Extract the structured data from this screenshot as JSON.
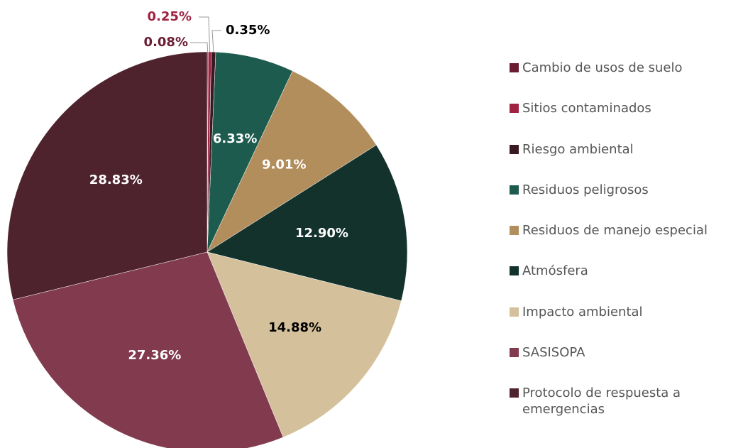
{
  "chart_data": {
    "type": "pie",
    "categories": [
      "Cambio de usos de suelo",
      "Sitios contaminados",
      "Riesgo ambiental",
      "Residuos peligrosos",
      "Residuos de manejo especial",
      "Atmósfera",
      "Impacto ambiental",
      "SASISOPA",
      "Protocolo de respuesta a emergencias"
    ],
    "values": [
      0.08,
      0.25,
      0.35,
      6.33,
      9.01,
      12.9,
      14.88,
      27.36,
      28.83
    ],
    "value_labels": [
      "0.08%",
      "0.25%",
      "0.35%",
      "6.33%",
      "9.01%",
      "12.90%",
      "14.88%",
      "27.36%",
      "28.83%"
    ],
    "colors": [
      "#691c32",
      "#9f2241",
      "#3a1a22",
      "#1e5b4f",
      "#b38e5d",
      "#13322b",
      "#d4c19c",
      "#823a4f",
      "#4e232e"
    ],
    "legend": "right"
  }
}
